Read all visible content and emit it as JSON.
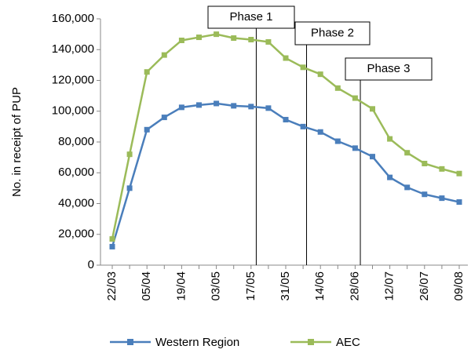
{
  "chart_data": {
    "type": "line",
    "ylabel": "No. in receipt of PUP",
    "categories": [
      "22/03",
      null,
      "05/04",
      null,
      "19/04",
      null,
      "03/05",
      null,
      "17/05",
      null,
      "31/05",
      null,
      "14/06",
      null,
      "28/06",
      null,
      "12/07",
      null,
      "26/07",
      null,
      "09/08"
    ],
    "series": [
      {
        "name": "Western Region",
        "color": "#4a7ebb",
        "values": [
          12000,
          50000,
          88000,
          96000,
          102500,
          104000,
          105000,
          103500,
          103000,
          102000,
          94500,
          90000,
          86500,
          80500,
          76000,
          70500,
          57000,
          50500,
          46000,
          43500,
          41000
        ]
      },
      {
        "name": "AEC",
        "color": "#9bbb59",
        "values": [
          17000,
          72000,
          125500,
          136500,
          146000,
          148000,
          150000,
          147500,
          146500,
          145000,
          134500,
          128500,
          124000,
          115000,
          108500,
          101500,
          82000,
          73000,
          66000,
          62500,
          59500
        ]
      }
    ],
    "annotations": [
      {
        "text": "Phase 1",
        "x": 8.3
      },
      {
        "text": "Phase 2",
        "x": 11.2
      },
      {
        "text": "Phase 3",
        "x": 14.3
      }
    ],
    "ylim": [
      0,
      160000
    ],
    "yticks": [
      0,
      {
        "value": 20000,
        "label": "20,000"
      },
      {
        "value": 40000,
        "label": "40,000"
      },
      {
        "value": 60000,
        "label": "60,000"
      },
      {
        "value": 80000,
        "label": "80,000"
      },
      {
        "value": 100000,
        "label": "100,000"
      },
      {
        "value": 120000,
        "label": "120,000"
      },
      {
        "value": 140000,
        "label": "140,000"
      },
      {
        "value": 160000,
        "label": "160,000"
      }
    ],
    "grid": false,
    "legend": "bottom"
  }
}
